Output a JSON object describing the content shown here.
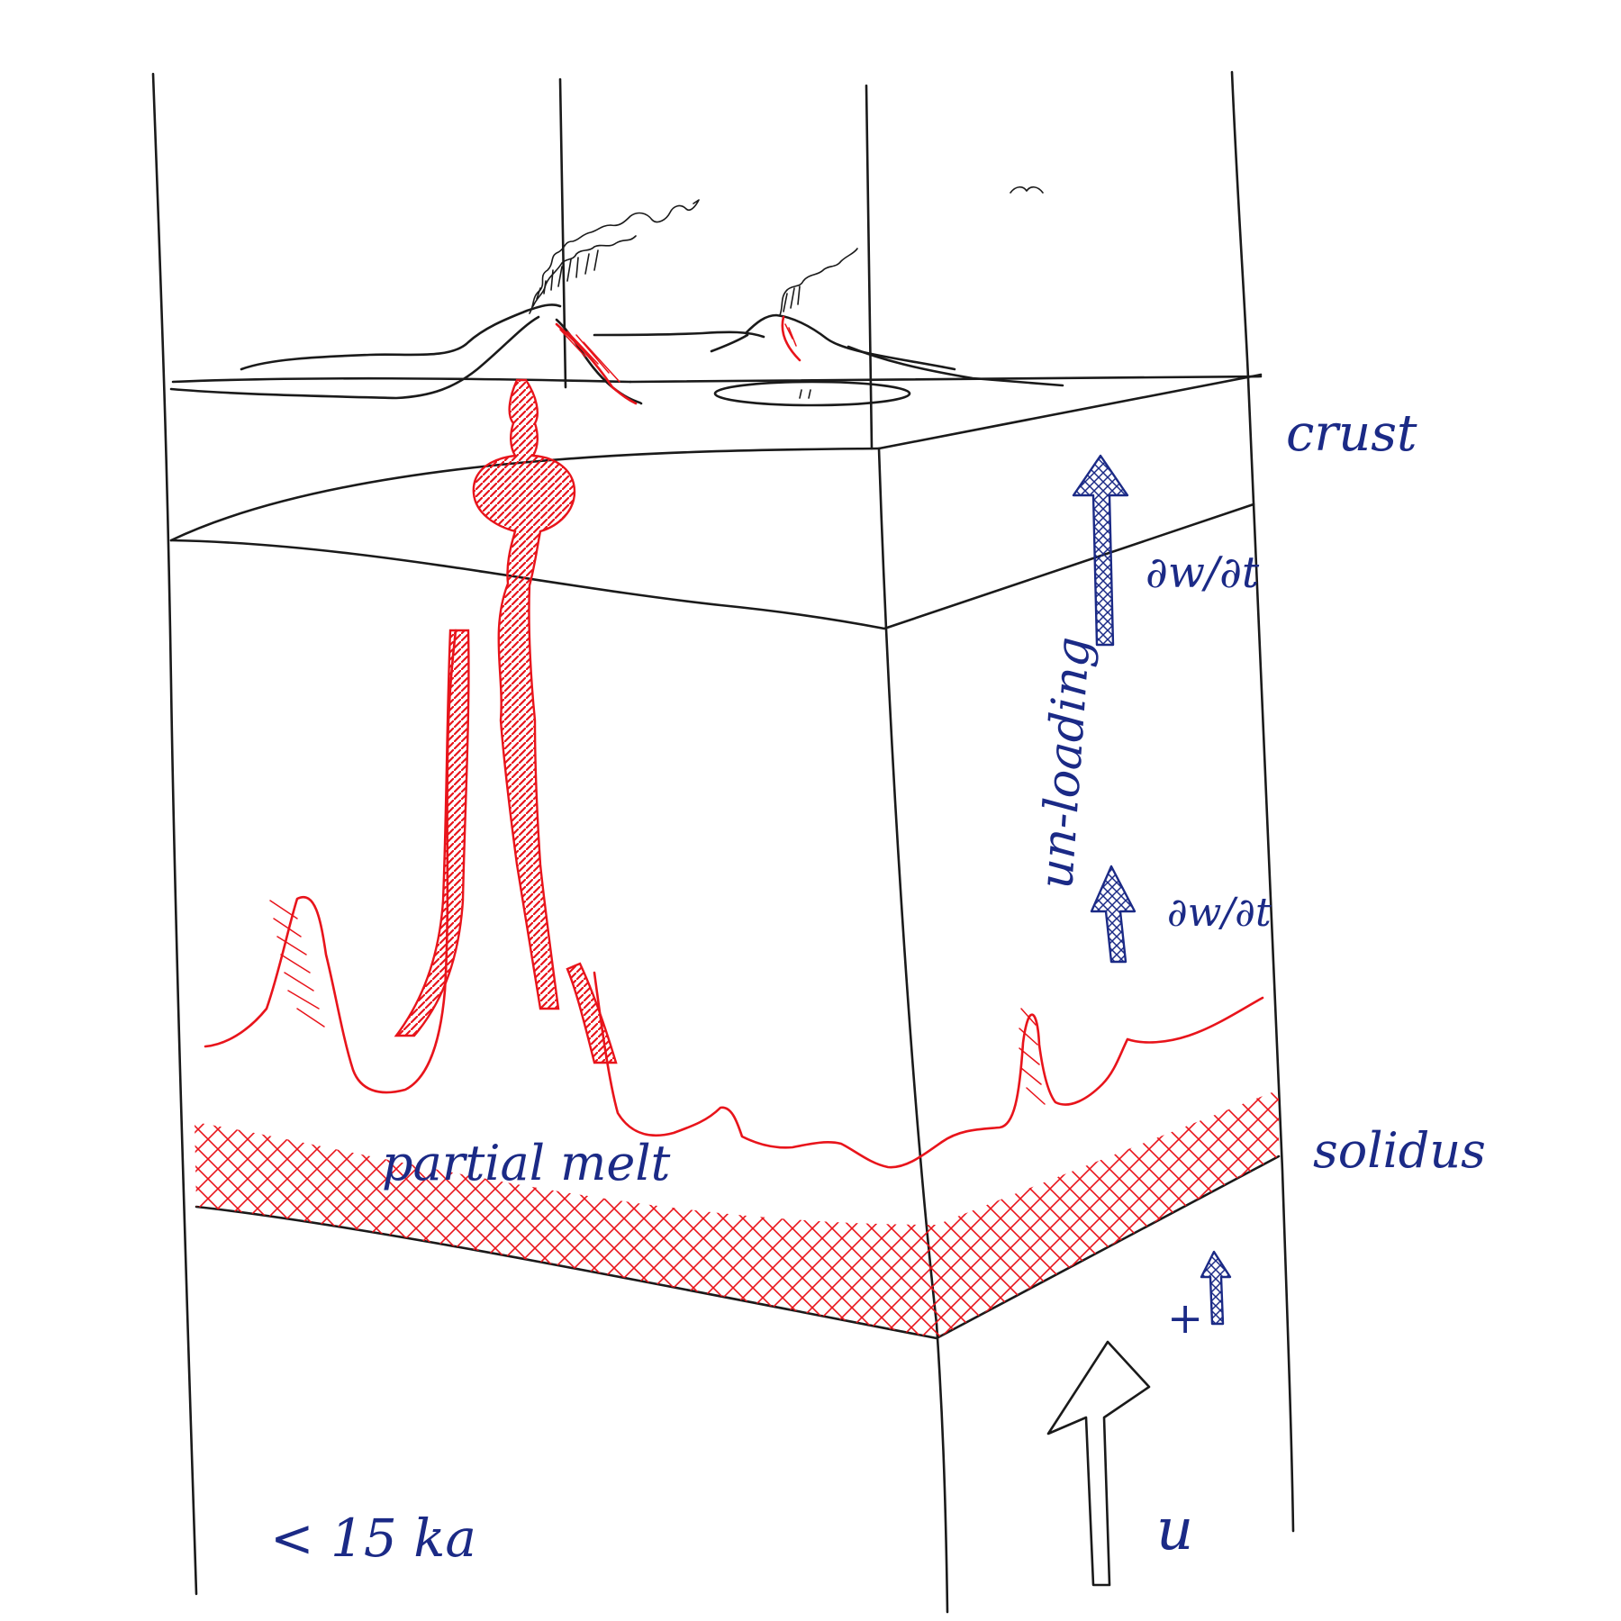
{
  "labels": {
    "crust": "crust",
    "unloading": "un-loading",
    "dwdt_upper": "∂w/∂t",
    "dwdt_lower": "∂w/∂t",
    "partial_melt": "partial melt",
    "solidus": "solidus",
    "age": "< 15 ka",
    "upwelling": "u",
    "plus": "+"
  },
  "colors": {
    "ink": "#1a1a1a",
    "melt": "#e8141b",
    "annotation": "#1b2a86"
  }
}
